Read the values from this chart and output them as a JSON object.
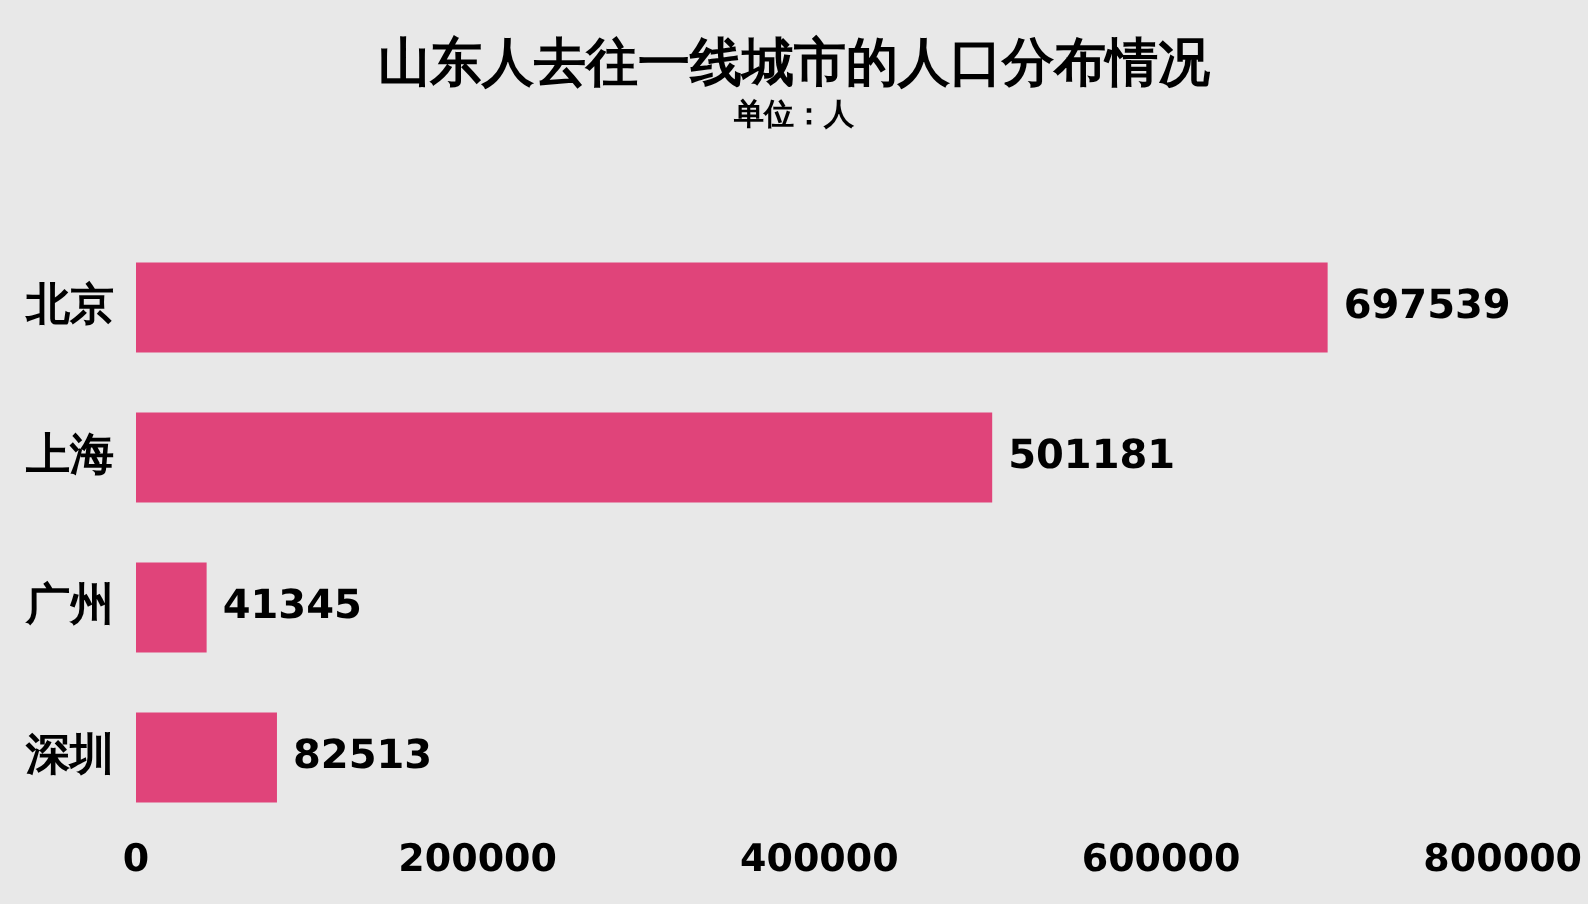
{
  "chart_data": {
    "type": "bar",
    "orientation": "horizontal",
    "title": "山东人去往一线城市的人口分布情况",
    "subtitle": "单位：人",
    "categories": [
      "北京",
      "上海",
      "广州",
      "深圳"
    ],
    "values": [
      697539,
      501181,
      41345,
      82513
    ],
    "color": "#e0447a",
    "xlim": [
      0,
      800000
    ],
    "xticks": [
      0,
      200000,
      400000,
      600000,
      800000
    ],
    "grid": false,
    "legend": false,
    "data_labels": true
  }
}
